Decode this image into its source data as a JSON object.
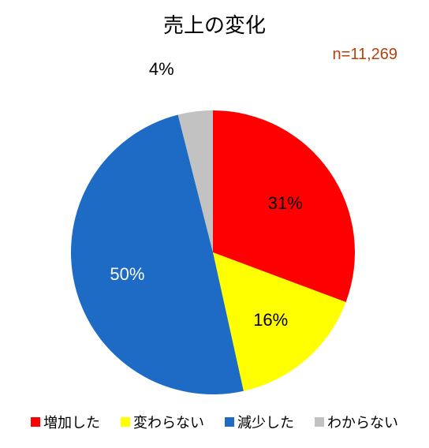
{
  "chart": {
    "type": "pie",
    "title": "売上の変化",
    "title_fontsize": 26,
    "title_color": "#000000",
    "n_label": "n=11,269",
    "n_label_color": "#b8410a",
    "n_label_fontsize": 20,
    "background_color": "#ffffff",
    "radius": 180,
    "start_angle_deg": 0,
    "slices": [
      {
        "label": "増加した",
        "value": 31,
        "display": "31%",
        "color": "#ff0000",
        "label_color": "#000000"
      },
      {
        "label": "変わらない",
        "value": 16,
        "display": "16%",
        "color": "#ffff00",
        "label_color": "#000000"
      },
      {
        "label": "減少した",
        "value": 50,
        "display": "50%",
        "color": "#1d6bc4",
        "label_color": "#ffffff"
      },
      {
        "label": "わからない",
        "value": 4,
        "display": "4%",
        "color": "#c2c2c2",
        "label_color": "#000000",
        "external_label": true
      }
    ],
    "label_fontsize": 22,
    "legend": {
      "fontsize": 18,
      "swatch_size": 12,
      "text_color": "#000000"
    },
    "leader_color": "#808080",
    "leader_width": 1
  }
}
